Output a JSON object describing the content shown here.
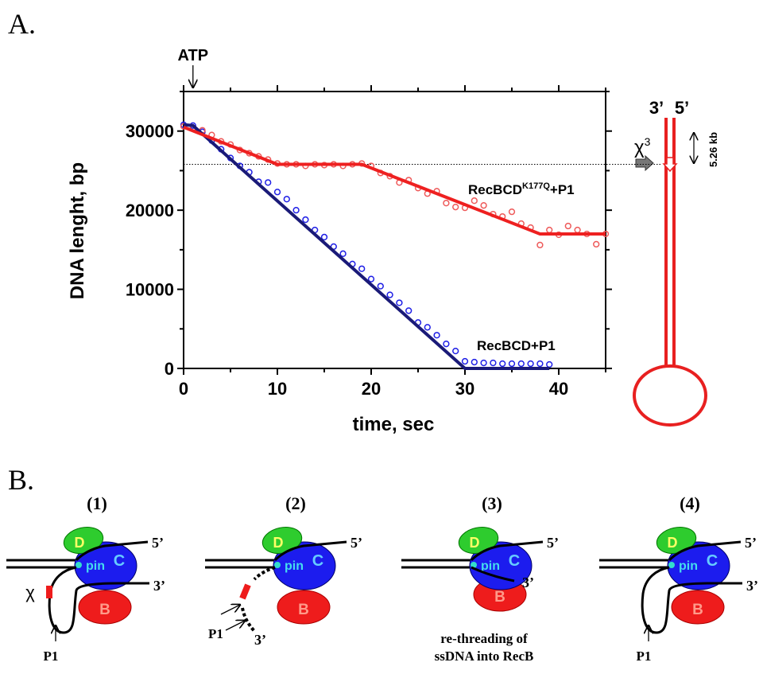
{
  "panel_labels": [
    "A.",
    "B."
  ],
  "chart_data": {
    "type": "scatter",
    "x_label": "time, sec",
    "y_label": "DNA lenght, bp",
    "xlim": [
      0,
      45
    ],
    "ylim": [
      0,
      35000
    ],
    "xticks": [
      0,
      10,
      20,
      30,
      40
    ],
    "yticks": [
      0,
      10000,
      20000,
      30000
    ],
    "xminorticks": [
      5,
      15,
      25,
      35,
      45
    ],
    "yminorticks": [
      5000,
      15000,
      25000,
      35000
    ],
    "reference_line": 25800,
    "annotations": [
      {
        "text": "ATP",
        "x": 1
      }
    ],
    "series": [
      {
        "name": "RecBCD+P1",
        "color": "#1f1fe6",
        "x": [
          0,
          1,
          2,
          3,
          4,
          5,
          6,
          7,
          8,
          9,
          10,
          11,
          12,
          13,
          14,
          15,
          16,
          17,
          18,
          19,
          20,
          21,
          22,
          23,
          24,
          25,
          26,
          27,
          28,
          29,
          30,
          31,
          32,
          33,
          34,
          35,
          36,
          37,
          38,
          39
        ],
        "values": [
          30800,
          30700,
          29900,
          28800,
          27700,
          26600,
          25600,
          24800,
          23600,
          23500,
          22300,
          21400,
          20000,
          18800,
          17500,
          16600,
          15400,
          14500,
          13200,
          12600,
          11300,
          10400,
          9300,
          8300,
          7300,
          5800,
          5200,
          4200,
          3100,
          2200,
          900,
          800,
          700,
          700,
          600,
          600,
          600,
          600,
          600,
          500
        ],
        "fit_color": "#1a1a78",
        "fit_x": [
          0,
          1,
          30,
          39
        ],
        "fit_values": [
          30800,
          30700,
          0,
          0
        ]
      },
      {
        "name": "RecBCD",
        "name_sup": "K177Q",
        "name_suffix": "+P1",
        "color": "#ee5a5a",
        "x": [
          0,
          1,
          2,
          3,
          4,
          5,
          6,
          7,
          8,
          9,
          10,
          11,
          12,
          13,
          14,
          15,
          16,
          17,
          18,
          19,
          20,
          21,
          22,
          23,
          24,
          25,
          26,
          27,
          28,
          29,
          30,
          31,
          32,
          33,
          34,
          35,
          36,
          37,
          38,
          39,
          40,
          41,
          42,
          43,
          44,
          45
        ],
        "values": [
          30600,
          30400,
          30100,
          29500,
          28700,
          28300,
          27600,
          27200,
          26800,
          26400,
          25900,
          25800,
          25800,
          25600,
          25800,
          25700,
          25800,
          25600,
          25800,
          25900,
          25600,
          24700,
          24300,
          23500,
          23800,
          22800,
          22100,
          22400,
          20900,
          20400,
          20300,
          21200,
          20600,
          19500,
          19200,
          19800,
          18300,
          17800,
          15600,
          17500,
          16900,
          18000,
          17500,
          17000,
          15700,
          17000
        ],
        "fit_color": "#ee2020",
        "fit_x": [
          0,
          10,
          19,
          38,
          45
        ],
        "fit_values": [
          30500,
          25800,
          25800,
          17000,
          17000
        ]
      }
    ]
  },
  "dna_diagram": {
    "end_labels": [
      "3’",
      "5’"
    ],
    "chi": "χ",
    "chi_sup": "3",
    "length": "5.26 kb"
  },
  "panels": [
    {
      "number": "(1)",
      "d": "D",
      "c": "C",
      "b": "B",
      "pin": "pin",
      "end_top": "5’",
      "end_bottom": "3’",
      "chi": "χ",
      "p1": "P1"
    },
    {
      "number": "(2)",
      "d": "D",
      "c": "C",
      "b": "B",
      "pin": "pin",
      "end_top": "5’",
      "end_tail": "3’",
      "p1": "P1"
    },
    {
      "number": "(3)",
      "d": "D",
      "c": "C",
      "b": "B",
      "pin": "pin",
      "end_top": "5’",
      "end_bottom": "3’",
      "caption": [
        "re-threading of",
        "ssDNA into RecB"
      ]
    },
    {
      "number": "(4)",
      "d": "D",
      "c": "C",
      "b": "B",
      "pin": "pin",
      "end_top": "5’",
      "end_bottom": "3’",
      "p1": "P1"
    }
  ]
}
